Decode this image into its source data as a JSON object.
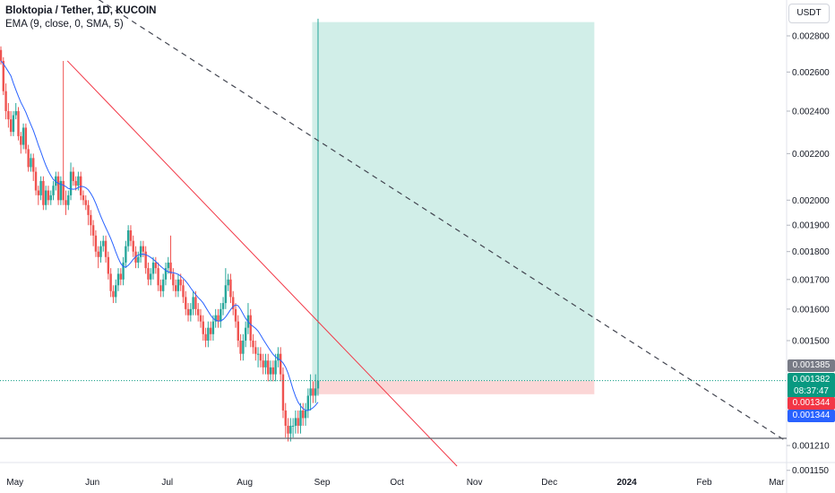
{
  "header": {
    "title": "Bloktopia / Tether, 1D, KUCOIN",
    "indicator": "EMA (9, close, 0, SMA, 5)",
    "currency_button": "USDT"
  },
  "price_tags": {
    "last_price": "0.001385",
    "current_price": "0.001382",
    "countdown": "08:37:47",
    "stop_level": "0.001344",
    "horizontal_line": "0.001344"
  },
  "colors": {
    "up": "#26a69a",
    "down": "#ef5350",
    "ema": "#2962ff",
    "trendline": "#f23645",
    "dashed_line": "#434651",
    "support_line": "#5d606b",
    "target_zone": "#d1eee8",
    "stop_zone": "#fbd6d6",
    "last_price_tag": "#787b86",
    "current_price_tag": "#089981",
    "stop_tag": "#f23645",
    "line_tag": "#2962ff"
  },
  "chart_data": {
    "type": "candlestick",
    "symbol": "Bloktopia / Tether",
    "interval": "1D",
    "exchange": "KUCOIN",
    "scale": "log",
    "y_axis_ticks": [
      "0.002800",
      "0.002600",
      "0.002400",
      "0.002200",
      "0.002000",
      "0.001900",
      "0.001800",
      "0.001700",
      "0.001600",
      "0.001500",
      "0.001210",
      "0.001150"
    ],
    "x_axis_ticks": [
      "May",
      "Jun",
      "Jul",
      "Aug",
      "Sep",
      "Oct",
      "Nov",
      "Dec",
      "2024",
      "Feb",
      "Mar"
    ],
    "x_range": [
      "2023-04-25",
      "2024-03-05"
    ],
    "last_price": 0.001382,
    "ema": {
      "length": 9,
      "source": "close",
      "offset": 0,
      "smoothing": "SMA",
      "smoothing_length": 5
    },
    "position": {
      "entry": 0.001382,
      "stop": 0.001344,
      "target": 0.00288,
      "start": "2023-08-28",
      "end": "2023-12-19"
    },
    "lines": [
      {
        "name": "descending trendline",
        "from": [
          "2023-05-22",
          0.00266
        ],
        "to": [
          "2023-10-25",
          0.00116
        ]
      },
      {
        "name": "dashed trendline",
        "from": [
          "2023-04-28",
          0.0034
        ],
        "to": [
          "2024-03-05",
          0.00122
        ]
      },
      {
        "name": "horizontal support",
        "value": 0.001228
      }
    ],
    "candles": {
      "start_date": "2023-04-25",
      "open": [
        0.00272,
        0.00266,
        0.0025,
        0.0024,
        0.00236,
        0.0023,
        0.00238,
        0.0024,
        0.00228,
        0.00224,
        0.00232,
        0.00222,
        0.00214,
        0.00218,
        0.00212,
        0.00204,
        0.00202,
        0.00208,
        0.00198,
        0.00204,
        0.002,
        0.00202,
        0.00206,
        0.0021,
        0.002,
        0.00208,
        0.002,
        0.00198,
        0.00202,
        0.00212,
        0.00208,
        0.00206,
        0.0021,
        0.00202,
        0.002,
        0.00198,
        0.00194,
        0.0019,
        0.00186,
        0.0018,
        0.00178,
        0.00182,
        0.00184,
        0.00178,
        0.00172,
        0.00166,
        0.00164,
        0.00168,
        0.00172,
        0.0017,
        0.00176,
        0.00182,
        0.00188,
        0.00184,
        0.0018,
        0.00176,
        0.00178,
        0.00182,
        0.0018,
        0.00174,
        0.0017,
        0.00172,
        0.00176,
        0.00174,
        0.00168,
        0.00166,
        0.0017,
        0.00174,
        0.00176,
        0.00172,
        0.00168,
        0.00166,
        0.0017,
        0.00168,
        0.00164,
        0.0016,
        0.00158,
        0.0016,
        0.00164,
        0.0016,
        0.00158,
        0.00156,
        0.00152,
        0.0015,
        0.00154,
        0.00152,
        0.00156,
        0.00158,
        0.00156,
        0.0016,
        0.00162,
        0.00168,
        0.0017,
        0.00164,
        0.0016,
        0.00156,
        0.0015,
        0.00146,
        0.0015,
        0.00154,
        0.00158,
        0.0015,
        0.00148,
        0.00146,
        0.00146,
        0.00144,
        0.00142,
        0.00144,
        0.0014,
        0.00142,
        0.0014,
        0.00144,
        0.00146,
        0.0014,
        0.0013,
        0.00126,
        0.00124,
        0.00126,
        0.00126,
        0.00128,
        0.00126,
        0.0013,
        0.00128,
        0.0013,
        0.00134,
        0.00136,
        0.00134,
        0.00136
      ],
      "close": [
        0.00266,
        0.0025,
        0.0024,
        0.00236,
        0.0023,
        0.00238,
        0.0024,
        0.00228,
        0.00224,
        0.00232,
        0.00222,
        0.00214,
        0.00218,
        0.00212,
        0.00204,
        0.00202,
        0.00208,
        0.00198,
        0.00204,
        0.002,
        0.00202,
        0.00206,
        0.0021,
        0.002,
        0.00208,
        0.002,
        0.00198,
        0.00202,
        0.00212,
        0.00208,
        0.00206,
        0.0021,
        0.00202,
        0.002,
        0.00198,
        0.00194,
        0.0019,
        0.00186,
        0.0018,
        0.00178,
        0.00182,
        0.00184,
        0.00178,
        0.00172,
        0.00166,
        0.00164,
        0.00168,
        0.00172,
        0.0017,
        0.00176,
        0.00182,
        0.00188,
        0.00184,
        0.0018,
        0.00176,
        0.00178,
        0.00182,
        0.0018,
        0.00174,
        0.0017,
        0.00172,
        0.00176,
        0.00174,
        0.00168,
        0.00166,
        0.0017,
        0.00174,
        0.00176,
        0.00172,
        0.00168,
        0.00166,
        0.0017,
        0.00168,
        0.00164,
        0.0016,
        0.00158,
        0.0016,
        0.00164,
        0.0016,
        0.00158,
        0.00156,
        0.00152,
        0.0015,
        0.00154,
        0.00152,
        0.00156,
        0.00158,
        0.00156,
        0.0016,
        0.00162,
        0.00168,
        0.0017,
        0.00164,
        0.0016,
        0.00156,
        0.0015,
        0.00146,
        0.0015,
        0.00154,
        0.00158,
        0.0015,
        0.00148,
        0.00146,
        0.00146,
        0.00144,
        0.00142,
        0.00144,
        0.0014,
        0.00142,
        0.0014,
        0.00144,
        0.00146,
        0.0014,
        0.0013,
        0.00126,
        0.00124,
        0.00126,
        0.00126,
        0.00128,
        0.00126,
        0.0013,
        0.00128,
        0.0013,
        0.00134,
        0.00136,
        0.00134,
        0.00136,
        0.001382
      ],
      "high": [
        0.00274,
        0.00268,
        0.00254,
        0.00244,
        0.0024,
        0.0024,
        0.00244,
        0.00242,
        0.0023,
        0.00234,
        0.00234,
        0.00224,
        0.0022,
        0.0022,
        0.00214,
        0.00206,
        0.0021,
        0.0021,
        0.00206,
        0.00206,
        0.00204,
        0.00208,
        0.00212,
        0.00212,
        0.0021,
        0.00266,
        0.00204,
        0.00204,
        0.00216,
        0.00214,
        0.0021,
        0.00212,
        0.00212,
        0.00204,
        0.00202,
        0.002,
        0.00196,
        0.00192,
        0.00188,
        0.00182,
        0.00184,
        0.00186,
        0.00186,
        0.0018,
        0.00174,
        0.00168,
        0.0017,
        0.00174,
        0.00174,
        0.00178,
        0.00184,
        0.0019,
        0.0019,
        0.00186,
        0.00182,
        0.0018,
        0.00184,
        0.00184,
        0.00182,
        0.00176,
        0.00174,
        0.00178,
        0.00178,
        0.00176,
        0.0017,
        0.00172,
        0.00176,
        0.00178,
        0.00186,
        0.00174,
        0.0017,
        0.00172,
        0.00172,
        0.0017,
        0.00166,
        0.00162,
        0.00162,
        0.00166,
        0.00166,
        0.00162,
        0.0016,
        0.00158,
        0.00154,
        0.00156,
        0.00156,
        0.00158,
        0.0016,
        0.0016,
        0.00162,
        0.00164,
        0.00174,
        0.00172,
        0.00172,
        0.00166,
        0.00162,
        0.00158,
        0.00152,
        0.00152,
        0.00156,
        0.00162,
        0.0016,
        0.00152,
        0.0015,
        0.00148,
        0.00148,
        0.00146,
        0.00146,
        0.00146,
        0.00144,
        0.00144,
        0.00146,
        0.00148,
        0.00148,
        0.00142,
        0.00132,
        0.00128,
        0.00128,
        0.00128,
        0.0013,
        0.0013,
        0.00132,
        0.00132,
        0.00132,
        0.00136,
        0.0014,
        0.00138,
        0.0014,
        0.0029
      ],
      "low": [
        0.00264,
        0.00248,
        0.00236,
        0.00232,
        0.00228,
        0.00228,
        0.00236,
        0.00226,
        0.0022,
        0.00222,
        0.0022,
        0.00212,
        0.00212,
        0.00208,
        0.00202,
        0.00198,
        0.002,
        0.00196,
        0.00196,
        0.00198,
        0.00198,
        0.002,
        0.00204,
        0.00198,
        0.00198,
        0.00198,
        0.00194,
        0.00196,
        0.002,
        0.00206,
        0.00204,
        0.00204,
        0.002,
        0.00198,
        0.00196,
        0.0019,
        0.00186,
        0.00182,
        0.00178,
        0.00174,
        0.00176,
        0.0018,
        0.00176,
        0.0017,
        0.00164,
        0.00162,
        0.00162,
        0.00166,
        0.00168,
        0.00168,
        0.00174,
        0.0018,
        0.00182,
        0.00178,
        0.00174,
        0.00174,
        0.00176,
        0.00178,
        0.00172,
        0.00168,
        0.00168,
        0.0017,
        0.00172,
        0.00166,
        0.00164,
        0.00164,
        0.00168,
        0.00172,
        0.0017,
        0.00166,
        0.00164,
        0.00164,
        0.00166,
        0.00162,
        0.00158,
        0.00156,
        0.00156,
        0.00158,
        0.00158,
        0.00156,
        0.00154,
        0.0015,
        0.00148,
        0.00148,
        0.0015,
        0.0015,
        0.00154,
        0.00154,
        0.00154,
        0.00158,
        0.0016,
        0.00166,
        0.00162,
        0.00158,
        0.00154,
        0.00148,
        0.00144,
        0.00144,
        0.00148,
        0.00152,
        0.00148,
        0.00146,
        0.00144,
        0.00142,
        0.00142,
        0.0014,
        0.0014,
        0.00138,
        0.00138,
        0.00138,
        0.00138,
        0.00142,
        0.00138,
        0.00128,
        0.00123,
        0.00122,
        0.00122,
        0.00123,
        0.00124,
        0.00124,
        0.00124,
        0.00126,
        0.00126,
        0.00128,
        0.0013,
        0.00132,
        0.00132,
        0.00134
      ]
    }
  }
}
